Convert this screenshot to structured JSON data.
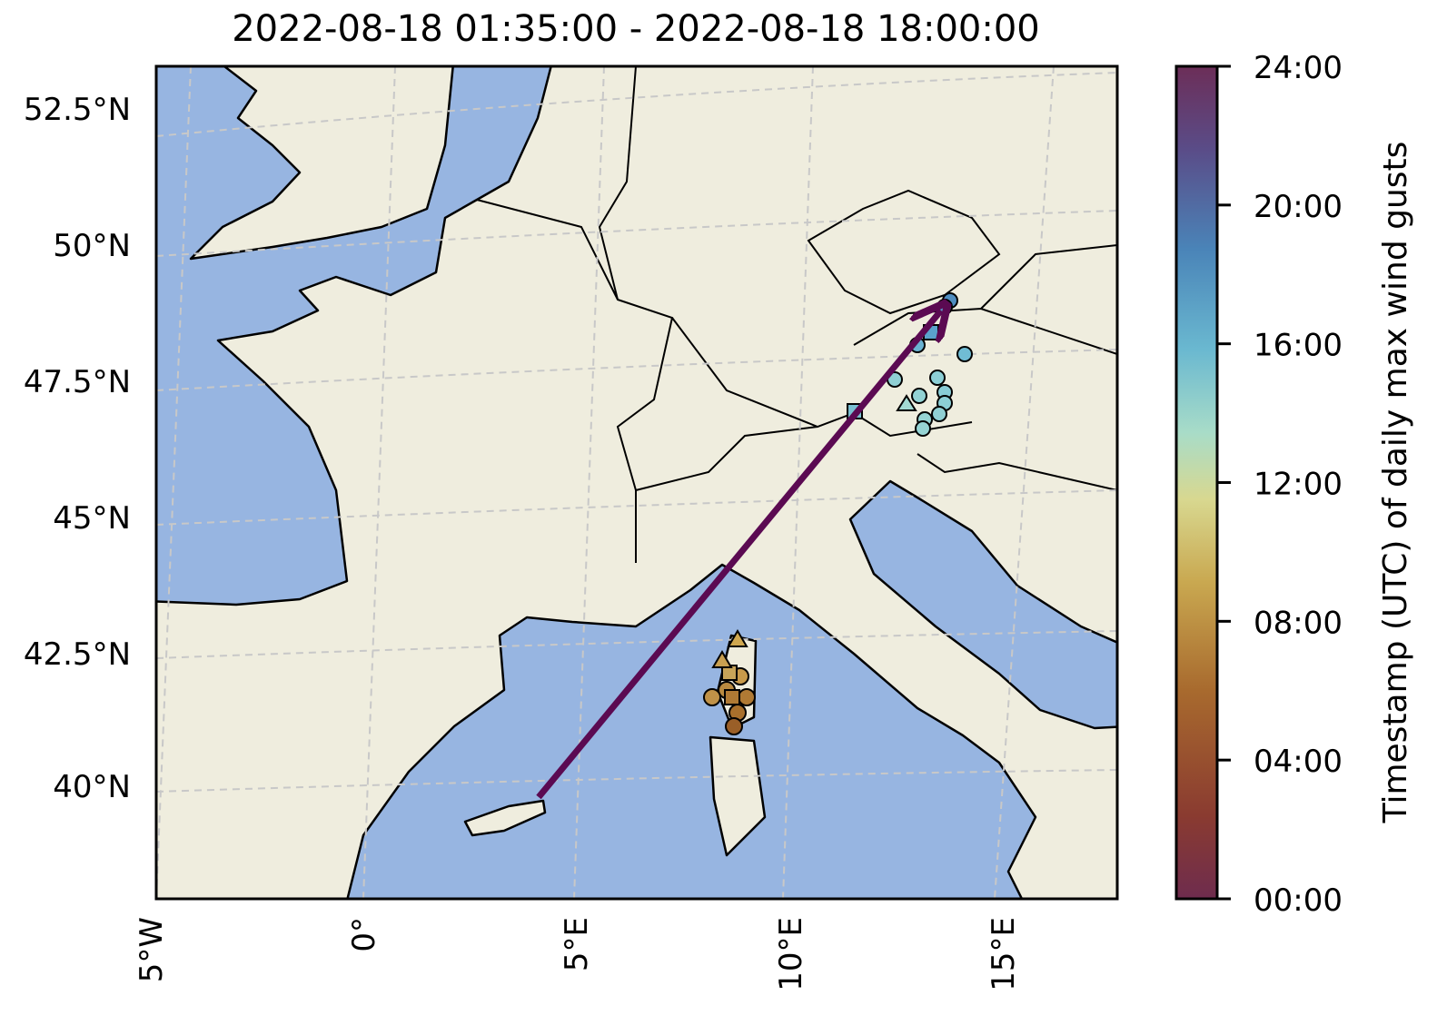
{
  "title": "2022-08-18 01:35:00 - 2022-08-18 18:00:00",
  "map": {
    "lat_labels": [
      "52.5°N",
      "50°N",
      "47.5°N",
      "45°N",
      "42.5°N",
      "40°N"
    ],
    "lon_labels": [
      "5°W",
      "0°",
      "5°E",
      "10°E",
      "15°E"
    ]
  },
  "colorbar": {
    "label": "Timestamp (UTC) of daily max wind gusts",
    "ticks": [
      "00:00",
      "04:00",
      "08:00",
      "12:00",
      "16:00",
      "20:00",
      "24:00"
    ]
  }
}
